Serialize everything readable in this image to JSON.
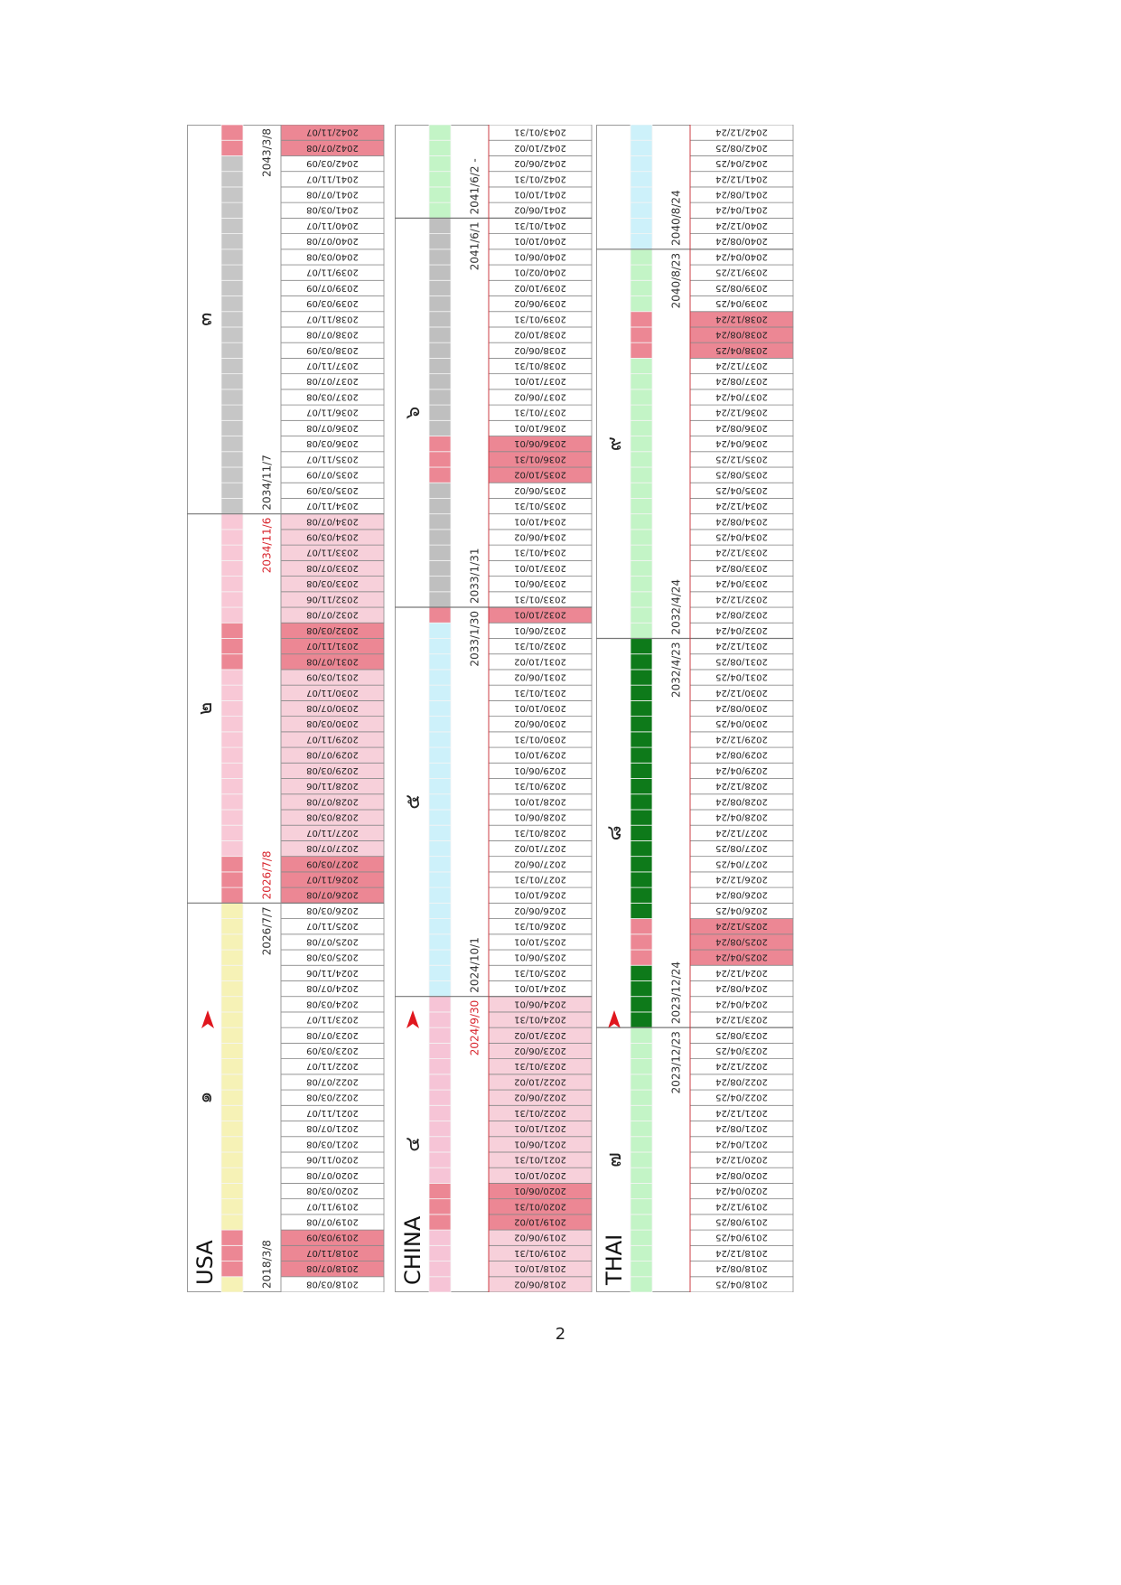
{
  "highlight_color": "#ec8794",
  "sections": [
    {
      "name": "USA",
      "red_cells": [
        "2018/07/08",
        "2018/11/07",
        "2019/03/09",
        "2026/07/08",
        "2026/11/07",
        "2027/03/09",
        "2031/07/08",
        "2031/11/07",
        "2032/03/08",
        "2042/07/08",
        "2042/11/07"
      ],
      "bands": [
        {
          "numeral": "๑",
          "color": "#f6f2b6",
          "start": "2018/3/8",
          "end": "2026/7/7",
          "cells": [
            "2018/03/08",
            "2018/07/08",
            "2018/11/07",
            "2019/03/09",
            "2019/07/08",
            "2019/11/07",
            "2020/03/08",
            "2020/07/08",
            "2020/11/06",
            "2021/03/08",
            "2021/07/08",
            "2021/11/07",
            "2022/03/08",
            "2022/07/08",
            "2022/11/07",
            "2023/03/09",
            "2023/07/08",
            "2023/11/07",
            "2024/03/08",
            "2024/07/08",
            "2024/11/06",
            "2025/03/08",
            "2025/07/08",
            "2025/11/07",
            "2026/03/08"
          ]
        },
        {
          "numeral": "๒",
          "color": "#f8c8d6",
          "cell_fill": "#f7d0da",
          "label_color": "#d8262e",
          "start": "2026/7/8",
          "end": "2034/11/6",
          "cells": [
            "2026/07/08",
            "2026/11/07",
            "2027/03/09",
            "2027/07/08",
            "2027/11/07",
            "2028/03/08",
            "2028/07/08",
            "2028/11/06",
            "2029/03/08",
            "2029/07/08",
            "2029/11/07",
            "2030/03/08",
            "2030/07/08",
            "2030/11/07",
            "2031/03/09",
            "2031/07/08",
            "2031/11/07",
            "2032/03/08",
            "2032/07/08",
            "2032/11/06",
            "2033/03/08",
            "2033/07/08",
            "2033/11/07",
            "2034/03/09",
            "2034/07/08"
          ]
        },
        {
          "numeral": "๓",
          "color": "#c6c6c6",
          "start": "2034/11/7",
          "end": "2043/3/8",
          "cells": [
            "2034/11/07",
            "2035/03/09",
            "2035/07/09",
            "2035/11/07",
            "2036/03/08",
            "2036/07/08",
            "2036/11/07",
            "2037/03/08",
            "2037/07/08",
            "2037/11/07",
            "2038/03/09",
            "2038/07/08",
            "2038/11/07",
            "2039/03/09",
            "2039/07/09",
            "2039/11/07",
            "2040/03/08",
            "2040/07/08",
            "2040/11/07",
            "2041/03/08",
            "2041/07/08",
            "2041/11/07",
            "2042/03/09",
            "2042/07/08",
            "2042/11/07"
          ]
        }
      ]
    },
    {
      "name": "CHINA",
      "red_cells": [
        "2019/10/02",
        "2020/01/31",
        "2020/06/01",
        "2032/10/01",
        "2035/10/02",
        "2036/01/31",
        "2036/06/01"
      ],
      "bands": [
        {
          "numeral": "๔",
          "color": "#f6c4d6",
          "cell_fill": "#f7d0da",
          "label_color": "#d8262e",
          "end": "2024/9/30",
          "cells": [
            "2018/06/02",
            "2018/10/01",
            "2019/01/31",
            "2019/06/02",
            "2019/10/02",
            "2020/01/31",
            "2020/06/01",
            "2020/10/01",
            "2021/01/31",
            "2021/06/01",
            "2021/10/01",
            "2022/01/31",
            "2022/06/02",
            "2022/10/02",
            "2023/01/31",
            "2023/06/02",
            "2023/10/02",
            "2024/01/31",
            "2024/06/01"
          ]
        },
        {
          "numeral": "๕",
          "color": "#cdf1fa",
          "start": "2024/10/1",
          "end": "2033/1/30",
          "cells": [
            "2024/10/01",
            "2025/01/31",
            "2025/06/01",
            "2025/10/01",
            "2026/01/31",
            "2026/06/02",
            "2026/10/01",
            "2027/01/31",
            "2027/06/02",
            "2027/10/02",
            "2028/01/31",
            "2028/06/01",
            "2028/10/01",
            "2029/01/31",
            "2029/06/01",
            "2029/10/01",
            "2030/01/31",
            "2030/06/02",
            "2030/10/01",
            "2031/01/31",
            "2031/06/02",
            "2031/10/02",
            "2032/01/31",
            "2032/06/01",
            "2032/10/01"
          ]
        },
        {
          "numeral": "๖",
          "color": "#bfbfbf",
          "start": "2033/1/31",
          "end": "2041/6/1",
          "cells": [
            "2033/01/31",
            "2033/06/01",
            "2033/10/01",
            "2034/01/31",
            "2034/06/02",
            "2034/10/01",
            "2035/01/31",
            "2035/06/02",
            "2035/10/02",
            "2036/01/31",
            "2036/06/01",
            "2036/10/01",
            "2037/01/31",
            "2037/06/02",
            "2037/10/01",
            "2038/01/31",
            "2038/06/02",
            "2038/10/02",
            "2039/01/31",
            "2039/06/02",
            "2039/10/02",
            "2040/02/01",
            "2040/06/01",
            "2040/10/01",
            "2041/01/31"
          ]
        },
        {
          "color": "#c3f4c6",
          "start": "2041/6/2 -",
          "cells": [
            "2041/06/02",
            "2041/10/01",
            "2042/01/31",
            "2042/06/02",
            "2042/10/02",
            "2043/01/31"
          ]
        }
      ]
    },
    {
      "name": "THAI",
      "red_cells": [
        "2025/04/24",
        "2025/08/24",
        "2025/12/24",
        "2038/04/25",
        "2038/08/24",
        "2038/12/24"
      ],
      "bands": [
        {
          "numeral": "๗",
          "color": "#c3f4c6",
          "end": "2023/12/23",
          "cells": [
            "2018/04/25",
            "2018/08/24",
            "2018/12/24",
            "2019/04/25",
            "2019/08/25",
            "2019/12/24",
            "2020/04/24",
            "2020/08/24",
            "2020/12/24",
            "2021/04/24",
            "2021/08/24",
            "2021/12/24",
            "2022/04/25",
            "2022/08/24",
            "2022/12/24",
            "2023/04/25",
            "2023/08/25"
          ]
        },
        {
          "numeral": "๘",
          "color": "#0e7a1a",
          "start": "2023/12/24",
          "end": "2032/4/23",
          "cells": [
            "2023/12/24",
            "2024/04/24",
            "2024/08/24",
            "2024/12/24",
            "2025/04/24",
            "2025/08/24",
            "2025/12/24",
            "2026/04/25",
            "2026/08/24",
            "2026/12/24",
            "2027/04/25",
            "2027/08/25",
            "2027/12/24",
            "2028/04/24",
            "2028/08/24",
            "2028/12/24",
            "2029/04/24",
            "2029/08/24",
            "2029/12/24",
            "2030/04/25",
            "2030/08/24",
            "2030/12/24",
            "2031/04/25",
            "2031/08/25",
            "2031/12/24"
          ]
        },
        {
          "numeral": "๙",
          "color": "#c3f4c6",
          "start": "2032/4/24",
          "end": "2040/8/23",
          "cells": [
            "2032/04/24",
            "2032/08/24",
            "2032/12/24",
            "2033/04/24",
            "2033/08/24",
            "2033/12/24",
            "2034/04/25",
            "2034/08/24",
            "2034/12/24",
            "2035/04/25",
            "2035/08/25",
            "2035/12/25",
            "2036/04/24",
            "2036/08/24",
            "2036/12/24",
            "2037/04/24",
            "2037/08/24",
            "2037/12/24",
            "2038/04/25",
            "2038/08/24",
            "2038/12/24",
            "2039/04/25",
            "2039/08/25",
            "2039/12/25",
            "2040/04/24"
          ]
        },
        {
          "color": "#cdf1fa",
          "start": "2040/8/24",
          "cells": [
            "2040/08/24",
            "2040/12/24",
            "2041/04/24",
            "2041/08/24",
            "2041/12/24",
            "2042/04/25",
            "2042/08/25",
            "2042/12/24"
          ]
        }
      ]
    }
  ],
  "page_number": "2"
}
